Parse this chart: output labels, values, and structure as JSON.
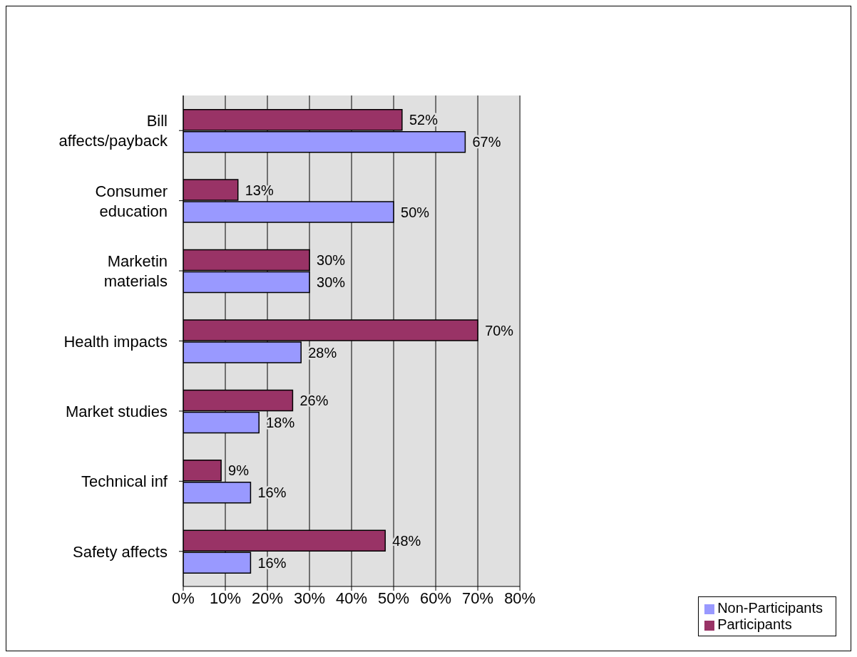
{
  "chart_data": {
    "type": "bar",
    "orientation": "horizontal",
    "categories": [
      "Bill affects/payback",
      "Consumer education",
      "Marketin materials",
      "Health impacts",
      "Market studies",
      "Technical inf",
      "Safety affects"
    ],
    "series": [
      {
        "name": "Participants",
        "color": "#993366",
        "values": [
          52,
          13,
          30,
          70,
          26,
          9,
          48
        ],
        "value_labels": [
          "52%",
          "13%",
          "30%",
          "70%",
          "26%",
          "9%",
          "48%"
        ]
      },
      {
        "name": "Non-Participants",
        "color": "#9999ff",
        "values": [
          67,
          50,
          30,
          28,
          18,
          16,
          16
        ],
        "value_labels": [
          "67%",
          "50%",
          "30%",
          "28%",
          "18%",
          "16%",
          "16%"
        ]
      }
    ],
    "xlim": [
      0,
      80
    ],
    "xticks": [
      {
        "value": 0,
        "label": "0%"
      },
      {
        "value": 10,
        "label": "10%"
      },
      {
        "value": 20,
        "label": "20%"
      },
      {
        "value": 30,
        "label": "30%"
      },
      {
        "value": 40,
        "label": "40%"
      },
      {
        "value": 50,
        "label": "50%"
      },
      {
        "value": 60,
        "label": "60%"
      },
      {
        "value": 70,
        "label": "70%"
      },
      {
        "value": 80,
        "label": "80%"
      }
    ],
    "grid": "x",
    "legend": "bottom right"
  }
}
